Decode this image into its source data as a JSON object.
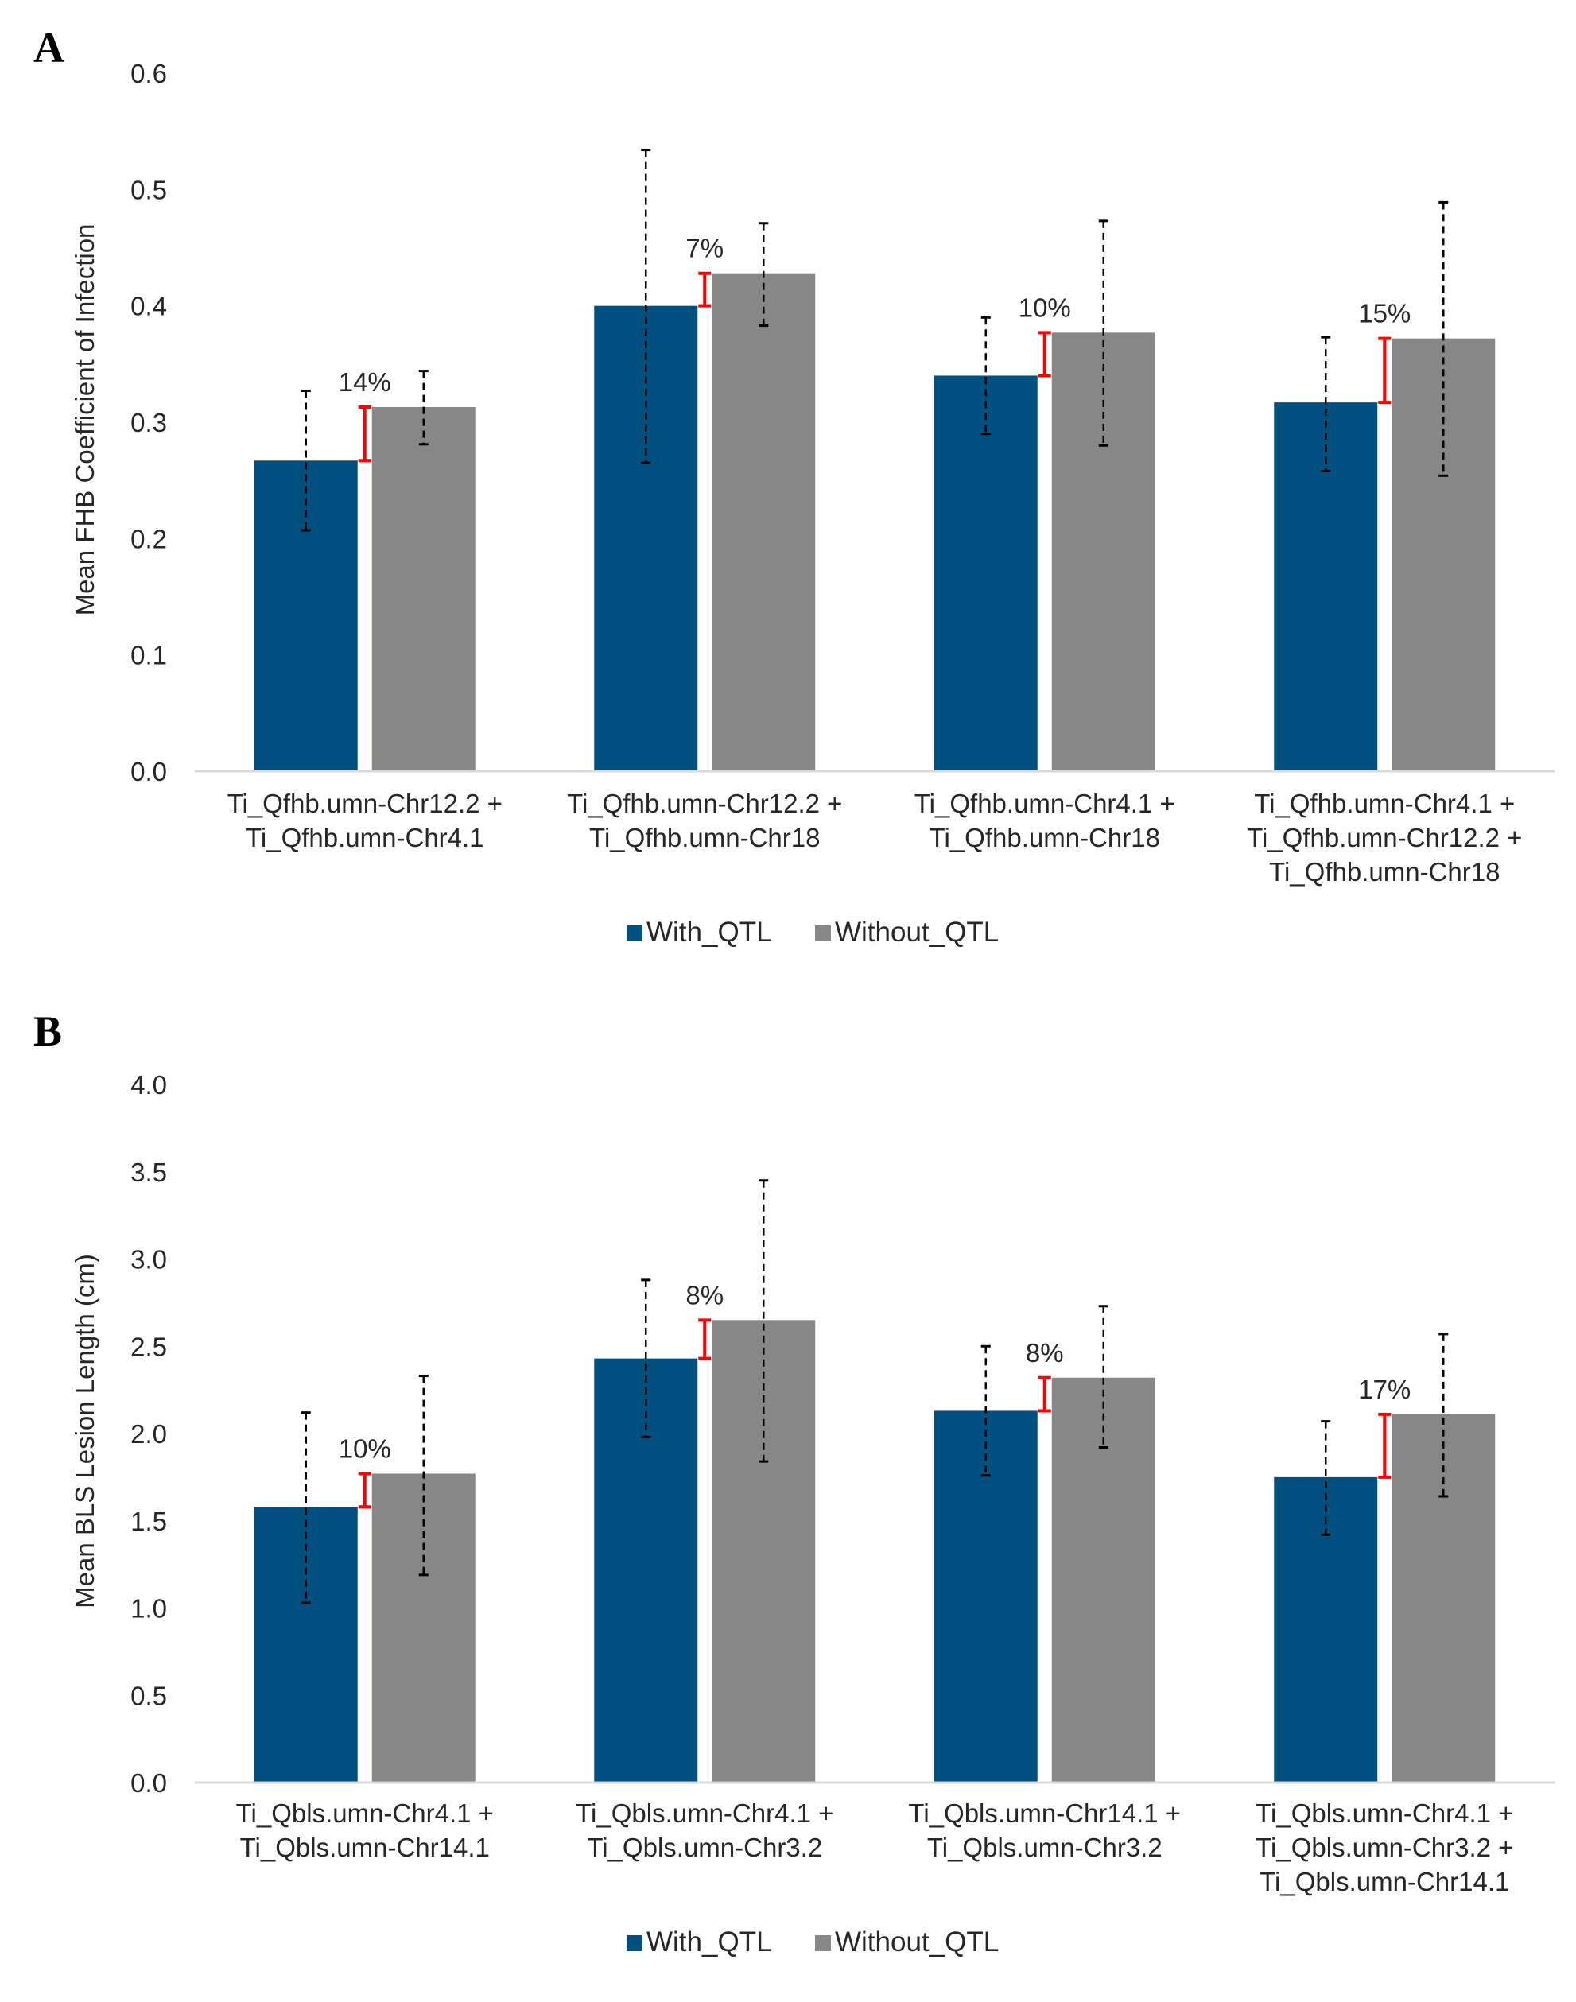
{
  "colors": {
    "with": "#00507f",
    "without": "#878787",
    "diff": "#ff0000",
    "errorbar": "#000000",
    "axis": "#d9d9d9"
  },
  "chart_data": [
    {
      "panel": "A",
      "type": "bar",
      "ylabel": "Mean FHB Coefficient of Infection",
      "ylim": [
        0,
        0.6
      ],
      "yticks": [
        "0.0",
        "0.1",
        "0.2",
        "0.3",
        "0.4",
        "0.5",
        "0.6"
      ],
      "ytick_values": [
        0,
        0.1,
        0.2,
        0.3,
        0.4,
        0.5,
        0.6
      ],
      "grid": false,
      "categories": [
        [
          "Ti_Qfhb.umn-Chr12.2 +",
          "Ti_Qfhb.umn-Chr4.1"
        ],
        [
          "Ti_Qfhb.umn-Chr12.2 +",
          "Ti_Qfhb.umn-Chr18"
        ],
        [
          "Ti_Qfhb.umn-Chr4.1 +",
          "Ti_Qfhb.umn-Chr18"
        ],
        [
          "Ti_Qfhb.umn-Chr4.1 +",
          "Ti_Qfhb.umn-Chr12.2 +",
          "Ti_Qfhb.umn-Chr18"
        ]
      ],
      "series": [
        {
          "name": "With_QTL",
          "values": [
            0.267,
            0.4,
            0.34,
            0.317
          ],
          "err_low": [
            0.207,
            0.265,
            0.29,
            0.258
          ],
          "err_high": [
            0.327,
            0.534,
            0.39,
            0.373
          ]
        },
        {
          "name": "Without_QTL",
          "values": [
            0.313,
            0.428,
            0.377,
            0.372
          ],
          "err_low": [
            0.281,
            0.383,
            0.28,
            0.254
          ],
          "err_high": [
            0.344,
            0.471,
            0.473,
            0.489
          ]
        }
      ],
      "annotations": [
        "14%",
        "7%",
        "10%",
        "15%"
      ],
      "legend": [
        "With_QTL",
        "Without_QTL"
      ],
      "legend_position": "bottom"
    },
    {
      "panel": "B",
      "type": "bar",
      "ylabel": "Mean BLS Lesion Length (cm)",
      "ylim": [
        0,
        4.0
      ],
      "yticks": [
        "0.0",
        "0.5",
        "1.0",
        "1.5",
        "2.0",
        "2.5",
        "3.0",
        "3.5",
        "4.0"
      ],
      "ytick_values": [
        0,
        0.5,
        1.0,
        1.5,
        2.0,
        2.5,
        3.0,
        3.5,
        4.0
      ],
      "grid": false,
      "categories": [
        [
          "Ti_Qbls.umn-Chr4.1 +",
          "Ti_Qbls.umn-Chr14.1"
        ],
        [
          "Ti_Qbls.umn-Chr4.1 +",
          "Ti_Qbls.umn-Chr3.2"
        ],
        [
          "Ti_Qbls.umn-Chr14.1 +",
          "Ti_Qbls.umn-Chr3.2"
        ],
        [
          "Ti_Qbls.umn-Chr4.1 +",
          "Ti_Qbls.umn-Chr3.2 +",
          "Ti_Qbls.umn-Chr14.1"
        ]
      ],
      "series": [
        {
          "name": "With_QTL",
          "values": [
            1.58,
            2.43,
            2.13,
            1.75
          ],
          "err_low": [
            1.03,
            1.98,
            1.76,
            1.42
          ],
          "err_high": [
            2.12,
            2.88,
            2.5,
            2.07
          ]
        },
        {
          "name": "Without_QTL",
          "values": [
            1.77,
            2.65,
            2.32,
            2.11
          ],
          "err_low": [
            1.19,
            1.84,
            1.92,
            1.64
          ],
          "err_high": [
            2.33,
            3.45,
            2.73,
            2.57
          ]
        }
      ],
      "annotations": [
        "10%",
        "8%",
        "8%",
        "17%"
      ],
      "legend": [
        "With_QTL",
        "Without_QTL"
      ],
      "legend_position": "bottom"
    }
  ]
}
